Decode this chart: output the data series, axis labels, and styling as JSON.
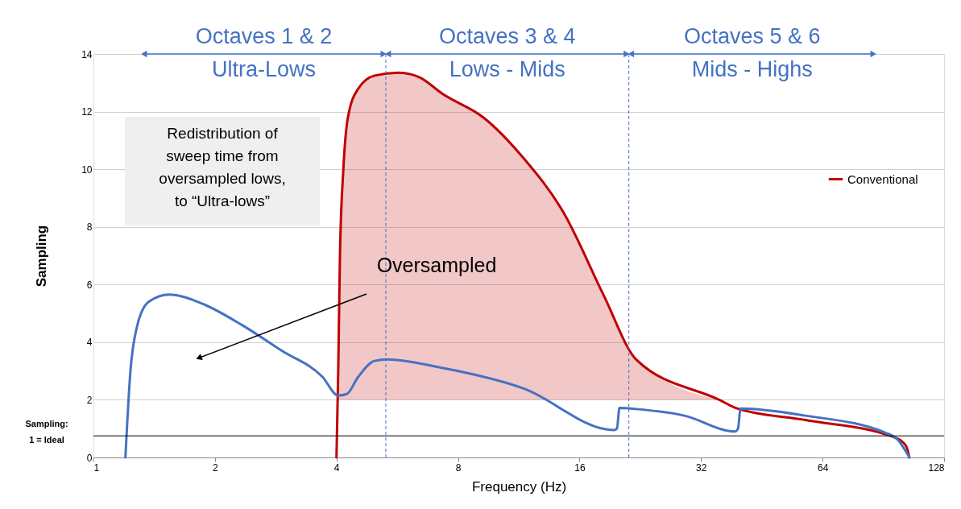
{
  "chart_data": {
    "type": "line",
    "xlabel": "Frequency (Hz)",
    "ylabel": "Sampling",
    "log": "x",
    "xlim": [
      1,
      128
    ],
    "xticks": [
      1,
      2,
      4,
      8,
      16,
      32,
      64,
      128
    ],
    "ylim": [
      0,
      14
    ],
    "yticks": [
      0,
      2,
      4,
      6,
      8,
      10,
      12,
      14
    ],
    "grid": "y",
    "legend": "right",
    "series": [
      {
        "name": "Conventional",
        "color": "#c00000",
        "x": [
          4.0,
          4.04,
          4.08,
          4.16,
          4.27,
          4.53,
          4.97,
          5.7,
          6.4,
          7.35,
          9.24,
          11.6,
          14.6,
          18.4,
          22.1,
          35.5,
          39.3,
          58.1,
          96.3,
          103,
          105
        ],
        "values": [
          0,
          3,
          7,
          10,
          11.8,
          12.8,
          13.25,
          13.35,
          13.2,
          12.6,
          11.8,
          10.4,
          8.5,
          5.6,
          3.4,
          2.0,
          1.7,
          1.3,
          0.7,
          0.4,
          0
        ],
        "lower": [
          null,
          2,
          2,
          2,
          2,
          2,
          2,
          2,
          2,
          2,
          2,
          2,
          2,
          2,
          2,
          2,
          null,
          null,
          null,
          null,
          null
        ],
        "upper": [
          null,
          3,
          7,
          10,
          11.8,
          12.8,
          13.25,
          13.35,
          13.2,
          12.6,
          11.8,
          10.4,
          8.5,
          5.6,
          3.4,
          2.0,
          null,
          null,
          null,
          null,
          null
        ]
      },
      {
        "color": "#4472c4",
        "x": [
          1.2,
          1.235,
          1.28,
          1.37,
          1.54,
          1.85,
          2.33,
          2.93,
          3.69,
          4.04,
          4.24,
          4.53,
          4.97,
          5.33,
          7.35,
          11.6,
          19.4,
          19.8,
          20.1,
          22.1,
          29.1,
          38.9,
          39.5,
          40.1,
          58.1,
          91.9,
          98.5,
          103,
          105
        ],
        "values": [
          0,
          3,
          4.5,
          5.4,
          5.65,
          5.35,
          4.6,
          3.7,
          2.8,
          2.15,
          2.2,
          2.8,
          3.35,
          3.4,
          3.1,
          2.4,
          0.95,
          1.0,
          1.72,
          1.68,
          1.45,
          0.9,
          1.0,
          1.7,
          1.45,
          0.85,
          0.6,
          0.2,
          0
        ]
      }
    ],
    "ref_lines": [
      {
        "axis": "y",
        "value": 0.75,
        "label": "Sampling:\n1 = Ideal",
        "color": "#000000",
        "line_style": "solid"
      },
      {
        "axis": "x",
        "value": 5.3,
        "label": null,
        "color": "#4472c4",
        "line_style": "dashed"
      },
      {
        "axis": "x",
        "value": 21.2,
        "label": null,
        "color": "#4472c4",
        "line_style": "dashed"
      }
    ],
    "annotations": [
      "Octaves 1 & 2\nUltra-Lows",
      "Octaves 3 & 4\nLows - Mids",
      "Octaves 5 & 6\nMids - Highs",
      "Redistribution of\nsweep time from\noversampled lows,\nto “Ultra-lows”",
      "Oversampled"
    ]
  }
}
